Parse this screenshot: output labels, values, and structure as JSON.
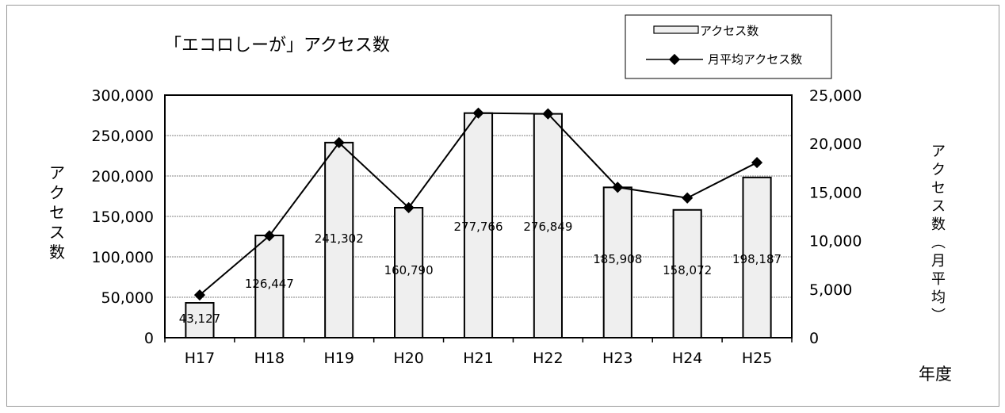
{
  "chart_data": {
    "type": "bar",
    "title": "「エコロしーが」アクセス数",
    "xlabel": "年度",
    "ylabel": "アクセス数",
    "y2label": "アクセス数（月平均）",
    "categories": [
      "H17",
      "H18",
      "H19",
      "H20",
      "H21",
      "H22",
      "H23",
      "H24",
      "H25"
    ],
    "series": [
      {
        "name": "アクセス数",
        "kind": "bar",
        "axis": "left",
        "values": [
          43127,
          126447,
          241302,
          160790,
          277766,
          276849,
          185908,
          158072,
          198187
        ],
        "labels": [
          "43,127",
          "126,447",
          "241,302",
          "160,790",
          "277,766",
          "276,849",
          "185,908",
          "158,072",
          "198,187"
        ]
      },
      {
        "name": "月平均アクセス数",
        "kind": "line",
        "axis": "right",
        "values": [
          4400,
          10500,
          20100,
          13400,
          23150,
          23070,
          15500,
          14400,
          18050
        ]
      }
    ],
    "ylim": [
      0,
      300000
    ],
    "y2lim": [
      0,
      25000
    ],
    "yticks": [
      "0",
      "50,000",
      "100,000",
      "150,000",
      "200,000",
      "250,000",
      "300,000"
    ],
    "y2ticks": [
      "0",
      "5,000",
      "10,000",
      "15,000",
      "20,000",
      "25,000"
    ],
    "grid": true,
    "legend": "top-right",
    "colors": {
      "bar_fill": "#efefef",
      "bar_stroke": "#000000",
      "line": "#000000",
      "marker": "#000000",
      "grid": "#808080"
    }
  }
}
